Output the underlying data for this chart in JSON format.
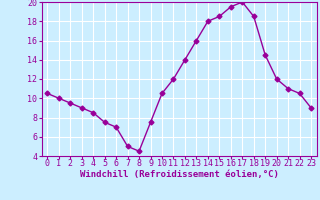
{
  "x": [
    0,
    1,
    2,
    3,
    4,
    5,
    6,
    7,
    8,
    9,
    10,
    11,
    12,
    13,
    14,
    15,
    16,
    17,
    18,
    19,
    20,
    21,
    22,
    23
  ],
  "y": [
    10.5,
    10.0,
    9.5,
    9.0,
    8.5,
    7.5,
    7.0,
    5.0,
    4.5,
    7.5,
    10.5,
    12.0,
    14.0,
    16.0,
    18.0,
    18.5,
    19.5,
    20.0,
    18.5,
    14.5,
    12.0,
    11.0,
    10.5,
    9.0
  ],
  "line_color": "#990099",
  "marker": "D",
  "marker_size": 2.5,
  "bg_color": "#cceeff",
  "grid_color": "#ffffff",
  "xlabel": "Windchill (Refroidissement éolien,°C)",
  "xlabel_color": "#990099",
  "tick_color": "#990099",
  "ylim": [
    4,
    20
  ],
  "xlim_min": -0.5,
  "xlim_max": 23.5,
  "yticks": [
    4,
    6,
    8,
    10,
    12,
    14,
    16,
    18,
    20
  ],
  "xticks": [
    0,
    1,
    2,
    3,
    4,
    5,
    6,
    7,
    8,
    9,
    10,
    11,
    12,
    13,
    14,
    15,
    16,
    17,
    18,
    19,
    20,
    21,
    22,
    23
  ],
  "spine_color": "#990099",
  "font_size_xlabel": 6.5,
  "font_size_ticks": 6,
  "line_width": 1.0
}
